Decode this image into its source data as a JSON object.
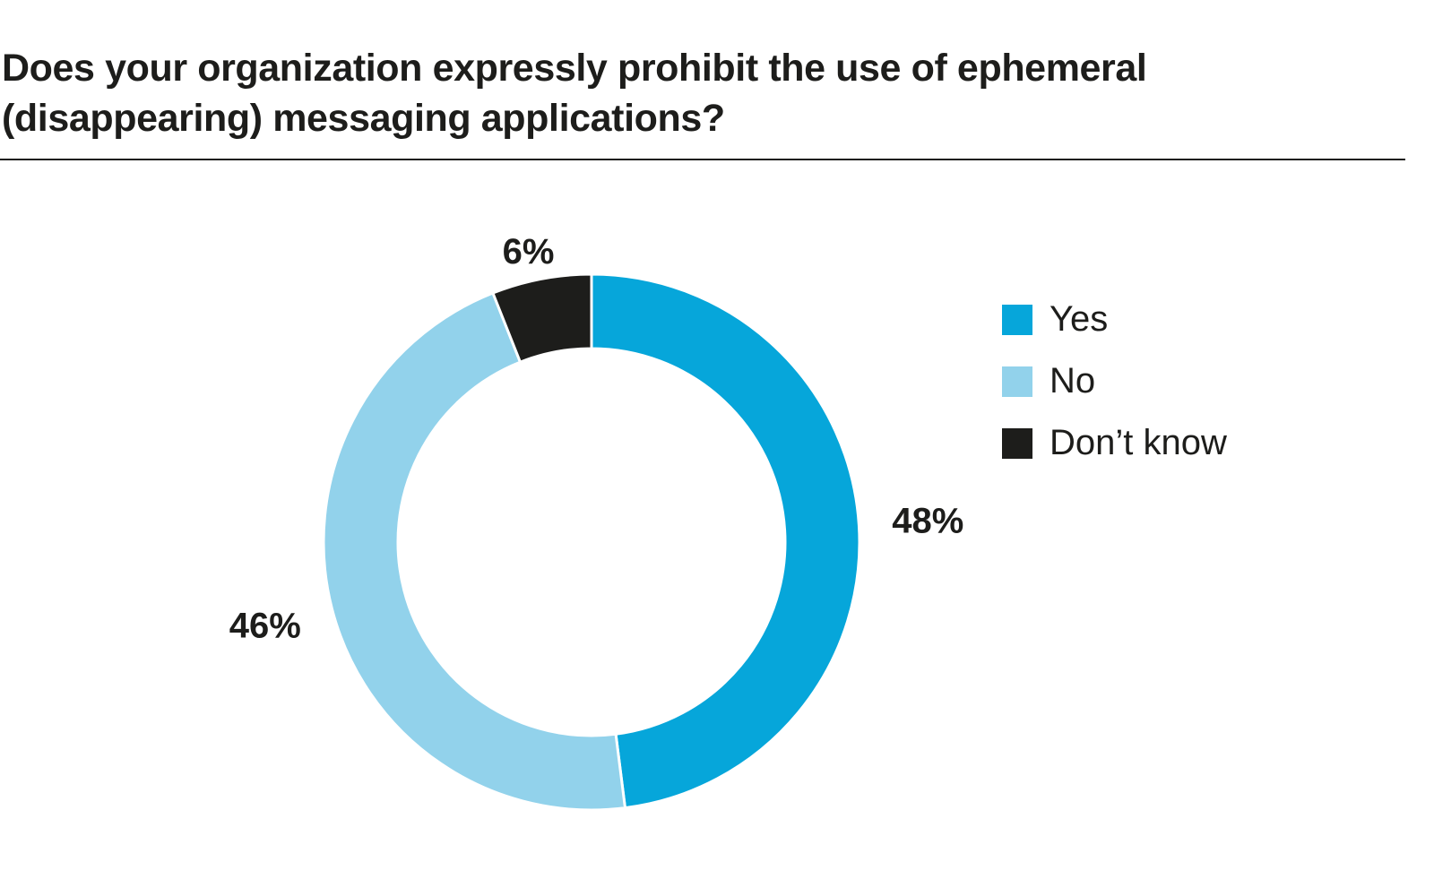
{
  "chart_data": {
    "type": "pie",
    "variant": "donut",
    "title": "Does your organization expressly prohibit the use of ephemeral (disappearing) messaging applications?",
    "slices": [
      {
        "label": "Yes",
        "value": 48,
        "display": "48%",
        "color": "#06a6da"
      },
      {
        "label": "No",
        "value": 46,
        "display": "46%",
        "color": "#92d2eb"
      },
      {
        "label": "Don’t know",
        "value": 6,
        "display": "6%",
        "color": "#1d1d1b"
      }
    ],
    "legend_placement": "right"
  }
}
